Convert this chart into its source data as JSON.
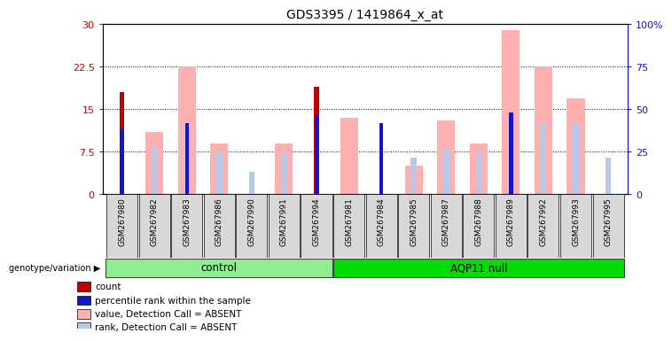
{
  "title": "GDS3395 / 1419864_x_at",
  "samples": [
    "GSM267980",
    "GSM267982",
    "GSM267983",
    "GSM267986",
    "GSM267990",
    "GSM267991",
    "GSM267994",
    "GSM267981",
    "GSM267984",
    "GSM267985",
    "GSM267987",
    "GSM267988",
    "GSM267989",
    "GSM267992",
    "GSM267993",
    "GSM267995"
  ],
  "n_control": 7,
  "count": [
    18.0,
    0,
    0,
    0,
    0,
    0,
    19.0,
    0,
    0,
    0,
    0,
    0,
    0,
    0,
    0,
    0
  ],
  "percentile_rank": [
    11.5,
    0,
    12.5,
    0,
    0,
    0,
    14.0,
    0,
    12.5,
    0,
    0,
    0,
    14.5,
    0,
    0,
    0
  ],
  "value_absent": [
    0,
    11.0,
    22.5,
    9.0,
    0,
    9.0,
    0,
    13.5,
    0,
    5.0,
    13.0,
    9.0,
    29.0,
    22.5,
    17.0,
    0
  ],
  "rank_absent": [
    0,
    8.5,
    12.5,
    7.5,
    4.0,
    7.5,
    0,
    0,
    0,
    6.5,
    8.0,
    7.5,
    0,
    12.5,
    12.5,
    6.5
  ],
  "ylim_left": [
    0,
    30
  ],
  "ylim_right": [
    0,
    100
  ],
  "yticks_left": [
    0,
    7.5,
    15,
    22.5,
    30
  ],
  "yticks_right": [
    0,
    25,
    50,
    75,
    100
  ],
  "ytick_labels_left": [
    "0",
    "7.5",
    "15",
    "22.5",
    "30"
  ],
  "ytick_labels_right": [
    "0",
    "25",
    "50",
    "75",
    "100%"
  ],
  "color_count": "#c00000",
  "color_rank": "#1414c8",
  "color_value_absent": "#ffb0b0",
  "color_rank_absent": "#b8c8e8",
  "plot_bg": "#ffffff",
  "tick_bg": "#d8d8d8",
  "label_count": "count",
  "label_rank": "percentile rank within the sample",
  "label_value_absent": "value, Detection Call = ABSENT",
  "label_rank_absent": "rank, Detection Call = ABSENT",
  "xlabel_control": "control",
  "xlabel_aqp11": "AQP11 null",
  "genotype_label": "genotype/variation"
}
